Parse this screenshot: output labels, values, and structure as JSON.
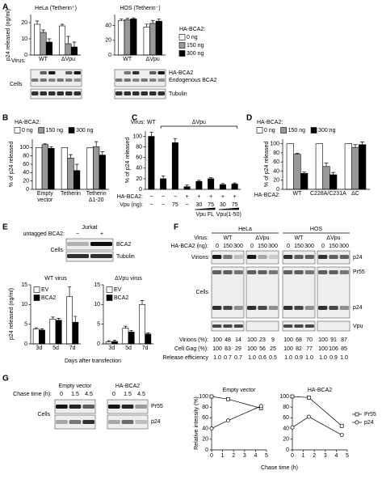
{
  "panel_labels": [
    "A",
    "B",
    "C",
    "D",
    "E",
    "F",
    "G"
  ],
  "chart_data": [
    {
      "type": "bar",
      "title": "HeLa (Tetherin⁺)",
      "ylabel": "p24 released (ng/ml)",
      "xlabel": "Virus:",
      "legend_title": "HA-BCA2:",
      "categories": [
        "WT",
        "ΔVpu"
      ],
      "series": [
        {
          "name": "0 ng",
          "color": "#ffffff",
          "values": [
            19,
            18
          ],
          "errors": [
            2,
            1
          ]
        },
        {
          "name": "150 ng",
          "color": "#999999",
          "values": [
            14,
            7
          ],
          "errors": [
            1.5,
            4.5
          ]
        },
        {
          "name": "300 ng",
          "color": "#000000",
          "values": [
            8,
            5
          ],
          "errors": [
            2,
            3
          ]
        }
      ],
      "ylim": [
        0,
        25
      ],
      "yticks": [
        0,
        10,
        20
      ]
    },
    {
      "type": "bar",
      "title": "HOS (Tetherin⁻)",
      "categories": [
        "WT",
        "ΔVpu"
      ],
      "series": [
        {
          "color": "#ffffff",
          "values": [
            47,
            38
          ],
          "errors": [
            2,
            4
          ]
        },
        {
          "color": "#999999",
          "values": [
            48,
            43
          ],
          "errors": [
            2,
            4
          ]
        },
        {
          "color": "#000000",
          "values": [
            49,
            46
          ],
          "errors": [
            1.5,
            3
          ]
        }
      ],
      "ylim": [
        0,
        55
      ],
      "yticks": [
        0,
        20,
        40
      ]
    },
    {
      "type": "bar",
      "legend_title": "HA-BCA2:",
      "ylabel": "% of p24 released",
      "categories": [
        "Empty vector",
        "Tetherin",
        "Tetherin Δ1-20"
      ],
      "series": [
        {
          "name": "0 ng",
          "color": "#ffffff",
          "values": [
            100,
            100,
            100
          ]
        },
        {
          "name": "150 ng",
          "color": "#999999",
          "values": [
            107,
            75,
            102
          ],
          "errors": [
            2,
            8,
            12
          ]
        },
        {
          "name": "300 ng",
          "color": "#000000",
          "values": [
            98,
            45,
            82
          ],
          "errors": [
            4,
            15,
            8
          ]
        }
      ],
      "ylim": [
        0,
        120
      ],
      "yticks": [
        0,
        20,
        40,
        60,
        80,
        100
      ]
    },
    {
      "type": "bar",
      "ylabel": "% of p24 released",
      "virus_label": "Virus:",
      "virus_groups": [
        "WT",
        "ΔVpu"
      ],
      "categories": [
        null,
        null,
        null,
        null,
        null,
        null,
        null,
        null
      ],
      "series": [
        {
          "color": "#000000",
          "values": [
            100,
            20,
            88,
            5,
            15,
            20,
            9,
            10
          ],
          "errors": [
            8,
            5,
            8,
            3,
            2,
            2,
            2,
            2
          ]
        }
      ],
      "ylim": [
        0,
        110
      ],
      "yticks": [
        0,
        20,
        40,
        60,
        80,
        100
      ],
      "rows": [
        {
          "label": "HA-BCA2:",
          "cells": [
            "−",
            "−",
            "−",
            "+",
            "+",
            "+",
            "+",
            "+"
          ]
        },
        {
          "label": "Vpu (ng):",
          "cells": [
            "−",
            "−",
            "75",
            "−",
            "30",
            "75",
            "30",
            "75"
          ]
        }
      ],
      "annotations": [
        "Vpu FL",
        "Vpu(1-50)"
      ]
    },
    {
      "type": "bar",
      "legend_title": "HA-BCA2:",
      "ylabel": "% of p24 released",
      "xlabel": "HA-BCA2:",
      "categories": [
        "WT",
        "C228A/C231A",
        "ΔC"
      ],
      "series": [
        {
          "name": "0 ng",
          "color": "#ffffff",
          "values": [
            100,
            100,
            100
          ]
        },
        {
          "name": "150 ng",
          "color": "#999999",
          "values": [
            77,
            50,
            92
          ],
          "errors": [
            2,
            8,
            6
          ]
        },
        {
          "name": "300 ng",
          "color": "#000000",
          "values": [
            35,
            32,
            98
          ],
          "errors": [
            3,
            5,
            6
          ]
        }
      ],
      "ylim": [
        0,
        110
      ],
      "yticks": [
        0,
        20,
        40,
        60,
        80,
        100
      ]
    },
    {
      "type": "bar",
      "title": "WT virus",
      "ylabel": "p24 released (ng/ml)",
      "xlabel": "Days after transfection",
      "categories": [
        "3d",
        "5d",
        "7d"
      ],
      "series": [
        {
          "name": "EV",
          "color": "#ffffff",
          "values": [
            3.8,
            6.3,
            12
          ],
          "errors": [
            0.3,
            0.5,
            2.5
          ]
        },
        {
          "name": "BCA2",
          "color": "#000000",
          "values": [
            3.5,
            6,
            5.5
          ],
          "errors": [
            0.3,
            0.5,
            1.5
          ]
        }
      ],
      "ylim": [
        0,
        15
      ],
      "yticks": [
        0,
        5,
        10,
        15
      ]
    },
    {
      "type": "bar",
      "title": "ΔVpu virus",
      "categories": [
        "3d",
        "5d",
        "7d"
      ],
      "series": [
        {
          "name": "EV",
          "color": "#ffffff",
          "values": [
            0.5,
            4,
            10
          ],
          "errors": [
            0.3,
            0.5,
            1
          ]
        },
        {
          "name": "BCA2",
          "color": "#000000",
          "values": [
            0.6,
            3,
            2.5
          ],
          "errors": [
            0.3,
            0.4,
            0.3
          ]
        }
      ],
      "ylim": [
        0,
        15
      ],
      "yticks": [
        0,
        5,
        10,
        15
      ]
    },
    {
      "type": "line",
      "title": "Empty vector",
      "ylabel": "Relative intensity (%)",
      "x": [
        0,
        1.5,
        4.5
      ],
      "series": [
        {
          "color": "#000000",
          "marker": "square",
          "values": [
            100,
            95,
            78
          ]
        },
        {
          "color": "#000000",
          "marker": "circle",
          "values": [
            40,
            55,
            82
          ]
        }
      ],
      "xlim": [
        0,
        5
      ],
      "xticks": [
        0,
        1,
        2,
        3,
        4,
        5
      ],
      "ylim": [
        0,
        100
      ],
      "yticks": [
        0,
        20,
        40,
        60,
        80,
        100
      ]
    },
    {
      "type": "line",
      "title": "HA-BCA2",
      "xlabel": "Chase time (h)",
      "x": [
        0,
        1.5,
        4.5
      ],
      "series": [
        {
          "name": "Pr55",
          "color": "#000000",
          "marker": "square",
          "values": [
            100,
            98,
            45
          ]
        },
        {
          "name": "p24",
          "color": "#000000",
          "marker": "circle",
          "values": [
            42,
            62,
            28
          ]
        }
      ],
      "xlim": [
        0,
        5
      ],
      "xticks": [
        0,
        1,
        2,
        3,
        4,
        5
      ],
      "ylim": [
        0,
        100
      ],
      "yticks": [
        0,
        20,
        40,
        60,
        80,
        100
      ]
    }
  ],
  "panel_a": {
    "cells_label": "Cells",
    "bands": [
      "HA-BCA2",
      "Endogenous BCA2",
      "Tubulin"
    ]
  },
  "panel_e": {
    "condition_label": "untagged BCA2:",
    "cell_line": "Jurkat",
    "lanes": [
      "−",
      "+"
    ],
    "cells_label": "Cells",
    "bands": [
      "BCA2",
      "Tubulin"
    ]
  },
  "panel_f": {
    "cell_lines": [
      "HeLa",
      "HOS"
    ],
    "virus_label": "Virus:",
    "viruses": [
      "WT",
      "ΔVpu",
      "WT",
      "ΔVpu"
    ],
    "dose_label": "HA-BCA2 (ng):",
    "doses": [
      [
        "0",
        "150",
        "300"
      ],
      [
        "0",
        "150",
        "300"
      ],
      [
        "0",
        "150",
        "300"
      ],
      [
        "0",
        "150",
        "300"
      ]
    ],
    "virions_label": "Virions",
    "cells_label": "Cells",
    "bands": [
      "p24",
      "Pr55",
      "p24",
      "Vpu"
    ],
    "table": [
      {
        "label": "Virions (%):",
        "values": [
          "100",
          "48",
          "14",
          "100",
          "23",
          "9",
          "100",
          "68",
          "70",
          "100",
          "91",
          "87"
        ]
      },
      {
        "label": "Cell Gag (%):",
        "values": [
          "100",
          "83",
          "29",
          "100",
          "56",
          "25",
          "100",
          "82",
          "77",
          "100",
          "106",
          "85"
        ]
      },
      {
        "label": "Release efficiency",
        "values": [
          "1.0",
          "0.7",
          "0.7",
          "1.0",
          "0.6",
          "0.5",
          "1.0",
          "0.9",
          "1.0",
          "1.0",
          "0.9",
          "1.0"
        ]
      }
    ]
  },
  "panel_g": {
    "groups": [
      "Empty vector",
      "HA-BCA2"
    ],
    "chase_label": "Chase time (h):",
    "times": [
      [
        "0",
        "1.5",
        "4.5"
      ],
      [
        "0",
        "1.5",
        "4.5"
      ]
    ],
    "cells_label": "Cells",
    "bands": [
      "Pr55",
      "p24"
    ]
  }
}
